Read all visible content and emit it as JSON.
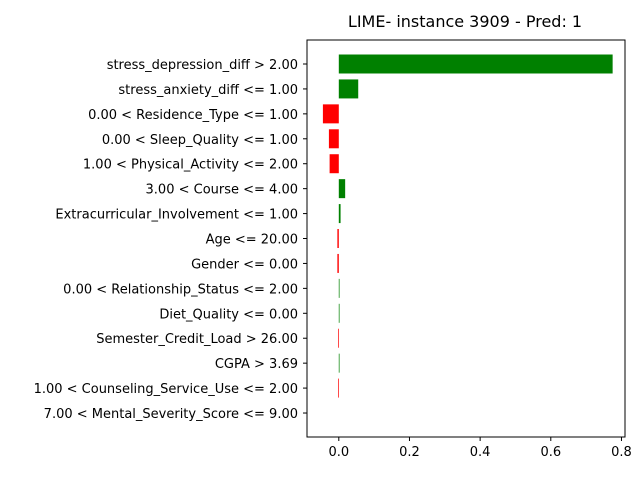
{
  "chart_data": {
    "type": "bar",
    "orientation": "horizontal",
    "title": "LIME- instance 3909 - Pred: 1",
    "xlabel": "",
    "ylabel": "",
    "xlim": [
      -0.09,
      0.81
    ],
    "xticks": [
      0.0,
      0.2,
      0.4,
      0.6,
      0.8
    ],
    "xtick_labels": [
      "0.0",
      "0.2",
      "0.4",
      "0.6",
      "0.8"
    ],
    "grid": false,
    "positive_color": "#008000",
    "negative_color": "#ff0000",
    "categories": [
      "stress_depression_diff > 2.00",
      "stress_anxiety_diff <= 1.00",
      "0.00 < Residence_Type <= 1.00",
      "0.00 < Sleep_Quality <= 1.00",
      "1.00 < Physical_Activity <= 2.00",
      "3.00 < Course <= 4.00",
      "Extracurricular_Involvement <= 1.00",
      "Age <= 20.00",
      "Gender <= 0.00",
      "0.00 < Relationship_Status <= 2.00",
      "Diet_Quality <= 0.00",
      "Semester_Credit_Load > 26.00",
      "CGPA > 3.69",
      "1.00 < Counseling_Service_Use <= 2.00",
      "7.00 < Mental_Severity_Score <= 9.00"
    ],
    "values": [
      0.775,
      0.055,
      -0.045,
      -0.028,
      -0.026,
      0.018,
      0.005,
      -0.004,
      -0.004,
      0.002,
      0.002,
      -0.002,
      0.002,
      -0.002,
      0.0
    ]
  }
}
